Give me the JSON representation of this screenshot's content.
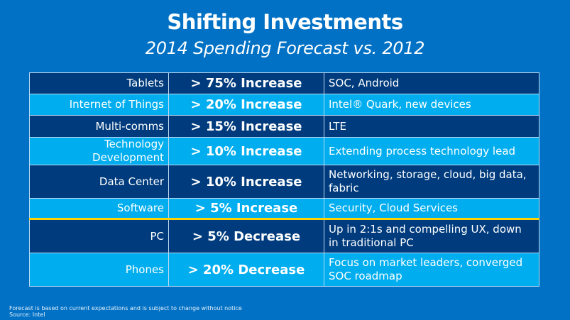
{
  "header": {
    "title": "Shifting Investments",
    "subtitle": "2014 Spending Forecast vs. 2012"
  },
  "colors": {
    "background": "#0071c5",
    "row_dark": "#003c7d",
    "row_light": "#00aeef",
    "separator": "#ffd200",
    "text": "#ffffff"
  },
  "table": {
    "rows": [
      {
        "category": "Tablets",
        "change": "> 75% Increase",
        "note": "SOC, Android"
      },
      {
        "category": "Internet of Things",
        "change": "> 20% Increase",
        "note": "Intel® Quark, new devices"
      },
      {
        "category": "Multi-comms",
        "change": "> 15% Increase",
        "note": "LTE"
      },
      {
        "category": "Technology Development",
        "change": "> 10% Increase",
        "note": "Extending process technology lead"
      },
      {
        "category": "Data Center",
        "change": "> 10% Increase",
        "note": "Networking, storage, cloud, big data, fabric"
      },
      {
        "category": "Software",
        "change": "> 5% Increase",
        "note": "Security, Cloud Services"
      },
      {
        "category": "PC",
        "change": "> 5% Decrease",
        "note": "Up in 2:1s and compelling UX, down in traditional PC"
      },
      {
        "category": "Phones",
        "change": "> 20% Decrease",
        "note": "Focus on market leaders, converged SOC roadmap"
      }
    ]
  },
  "footer": {
    "disclaimer": "Forecast is based on current expectations and is subject to change without notice",
    "source": "Source: Intel"
  }
}
